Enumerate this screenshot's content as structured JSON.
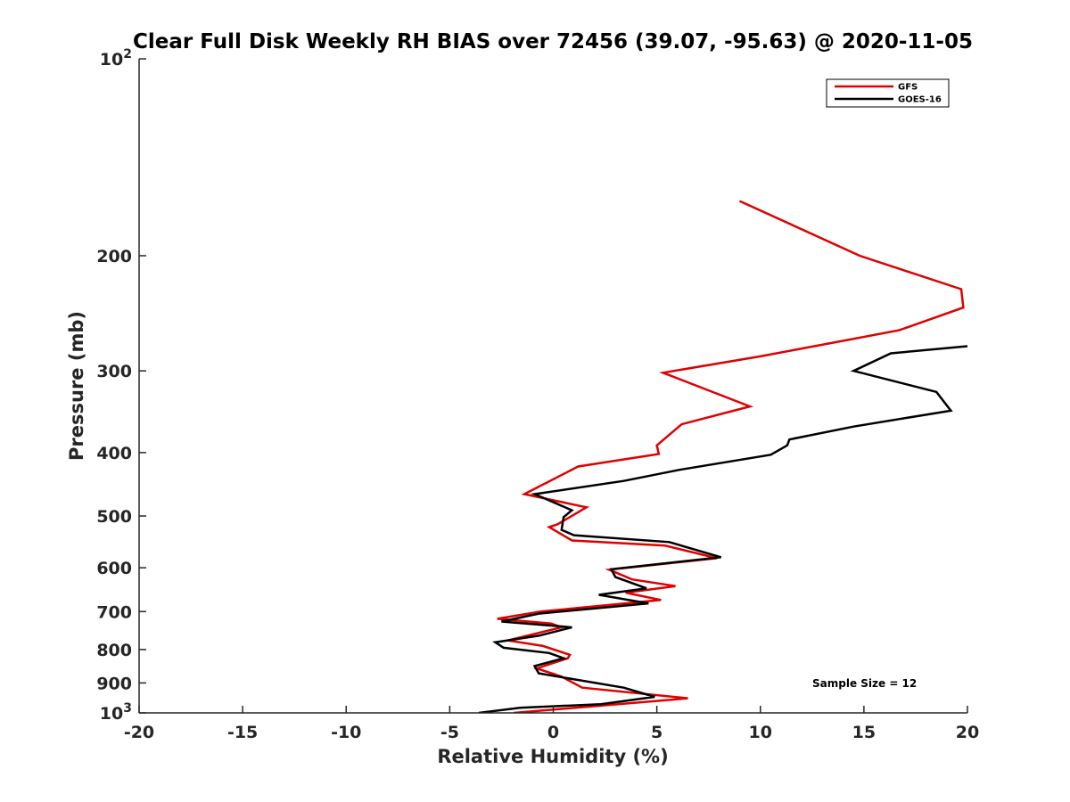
{
  "chart_data": {
    "type": "line",
    "title": "Clear Full Disk Weekly RH BIAS over 72456 (39.07, -95.63) @ 2020-11-05",
    "xlabel": "Relative Humidity (%)",
    "ylabel": "Pressure (mb)",
    "xlim": [
      -20,
      20
    ],
    "ylim": [
      100,
      1000
    ],
    "yscale": "log",
    "y_reversed": true,
    "grid": false,
    "legend_position": "top-right",
    "x_ticks": [
      "-20",
      "-15",
      "-10",
      "-5",
      "0",
      "5",
      "10",
      "15",
      "20"
    ],
    "y_ticks": [
      {
        "value": 100,
        "base": "10",
        "exp": "2"
      },
      {
        "value": 200,
        "label": "200"
      },
      {
        "value": 300,
        "label": "300"
      },
      {
        "value": 400,
        "label": "400"
      },
      {
        "value": 500,
        "label": "500"
      },
      {
        "value": 600,
        "label": "600"
      },
      {
        "value": 700,
        "label": "700"
      },
      {
        "value": 800,
        "label": "800"
      },
      {
        "value": 900,
        "label": "900"
      },
      {
        "value": 1000,
        "base": "10",
        "exp": "3"
      }
    ],
    "series": [
      {
        "name": "GFS",
        "color": "#e00000",
        "x": [
          9.0,
          14.8,
          19.7,
          19.8,
          16.7,
          10.0,
          5.3,
          9.5,
          6.2,
          5.0,
          5.1,
          1.2,
          -1.4,
          1.6,
          0.2,
          -0.2,
          0.9,
          5.4,
          7.9,
          2.7,
          3.8,
          5.9,
          3.5,
          5.2,
          -0.6,
          -2.7,
          -0.1,
          0.4,
          -2.2,
          -0.5,
          0.8,
          0.7,
          -0.8,
          0.4,
          1.4,
          6.5,
          2.3,
          -1.9
        ],
        "y": [
          165,
          200,
          225,
          240,
          260,
          285,
          302,
          340,
          362,
          390,
          402,
          420,
          463,
          485,
          515,
          520,
          545,
          555,
          580,
          604,
          625,
          640,
          655,
          672,
          700,
          718,
          730,
          740,
          775,
          790,
          815,
          825,
          855,
          880,
          915,
          950,
          975,
          1000
        ]
      },
      {
        "name": "GOES-16",
        "color": "#000000",
        "x": [
          20.0,
          16.3,
          14.5,
          18.5,
          19.2,
          14.5,
          11.4,
          11.3,
          10.5,
          6.1,
          3.4,
          -0.9,
          0.9,
          0.5,
          0.4,
          1.0,
          5.6,
          8.1,
          2.8,
          3.0,
          4.5,
          2.2,
          4.6,
          -0.7,
          -2.5,
          0.9,
          -0.7,
          -2.8,
          -2.4,
          -0.2,
          0.5,
          -0.9,
          -0.7,
          3.4,
          4.9,
          2.3,
          -1.6,
          -3.6
        ],
        "y": [
          275,
          282,
          300,
          323,
          345,
          365,
          382,
          390,
          403,
          425,
          442,
          463,
          490,
          502,
          525,
          535,
          548,
          578,
          603,
          620,
          645,
          660,
          680,
          705,
          725,
          740,
          762,
          780,
          795,
          810,
          825,
          848,
          870,
          915,
          945,
          970,
          982,
          1000
        ]
      }
    ],
    "annotations": [
      "Sample Size = 12"
    ]
  }
}
